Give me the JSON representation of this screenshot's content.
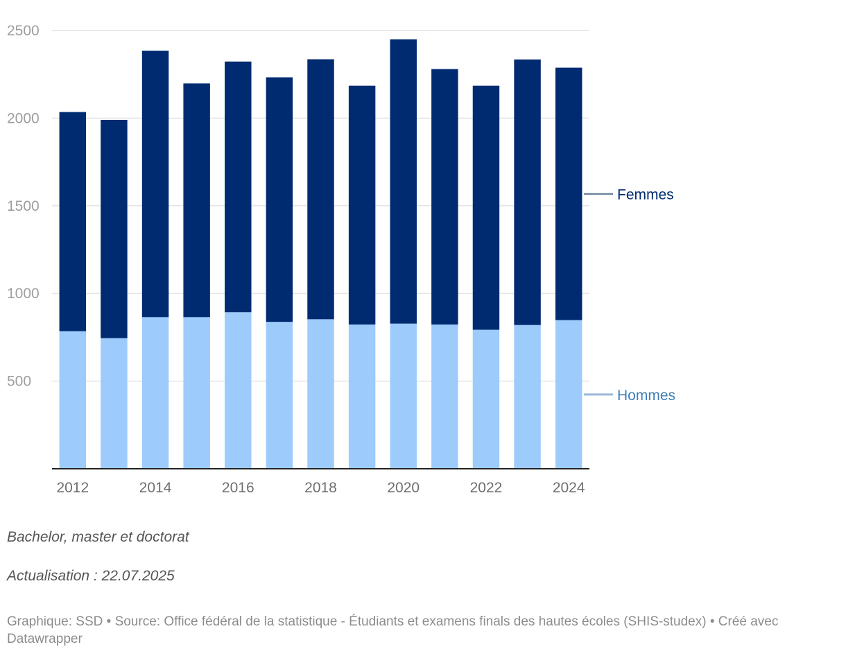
{
  "chart_data": {
    "type": "bar",
    "stacked": true,
    "categories": [
      "2012",
      "2013",
      "2014",
      "2015",
      "2016",
      "2017",
      "2018",
      "2019",
      "2020",
      "2021",
      "2022",
      "2023",
      "2024"
    ],
    "x_tick_labels": [
      "2012",
      "2014",
      "2016",
      "2018",
      "2020",
      "2022",
      "2024"
    ],
    "series": [
      {
        "name": "Hommes",
        "color": "#9ccbfc",
        "label_color": "#3f7eb7",
        "values": [
          785,
          745,
          865,
          865,
          893,
          838,
          853,
          823,
          828,
          823,
          793,
          820,
          848
        ]
      },
      {
        "name": "Femmes",
        "color": "#012b71",
        "label_color": "#012b71",
        "values": [
          1250,
          1245,
          1520,
          1333,
          1430,
          1395,
          1483,
          1362,
          1622,
          1457,
          1392,
          1515,
          1440
        ]
      }
    ],
    "y_ticks": [
      500,
      1000,
      1500,
      2000,
      2500
    ],
    "ylim": [
      0,
      2500
    ],
    "grid": true,
    "legend_placement": "right, inline labels"
  },
  "notes": {
    "subtitle": "Bachelor, master et doctorat",
    "update": "Actualisation : 22.07.2025"
  },
  "footer": {
    "text": "Graphique: SSD • Source: Office fédéral de la statistique - Étudiants et examens finals des hautes écoles (SHIS-studex) • Créé avec Datawrapper"
  }
}
